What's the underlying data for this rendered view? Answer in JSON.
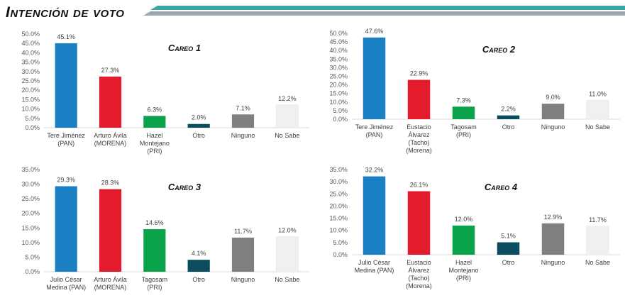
{
  "page": {
    "title": "Intención de voto"
  },
  "colors": {
    "header_teal": "#3aa6a6",
    "header_gray": "#9ea6ad",
    "pan_blue": "#1b7fc3",
    "morena_red": "#e41b2c",
    "pri_green": "#0aa24a",
    "otro_dark_teal": "#0b4d5e",
    "ninguno_gray": "#7f7f7f",
    "nosabe_light": "#f0f0f0",
    "axis_text": "#595959",
    "label_text": "#404040"
  },
  "chart_data": [
    {
      "type": "bar",
      "title": "Careo 1",
      "categories": [
        "Tere Jiménez|(PAN)",
        "Arturo Ávila|(MORENA)",
        "Hazel|Montejano|(PRI)",
        "Otro",
        "Ninguno",
        "No Sabe"
      ],
      "values": [
        45.1,
        27.3,
        6.3,
        2.0,
        7.1,
        12.2
      ],
      "value_labels": [
        "45.1%",
        "27.3%",
        "6.3%",
        "2.0%",
        "7.1%",
        "12.2%"
      ],
      "bar_colors": [
        "#1b7fc3",
        "#e41b2c",
        "#0aa24a",
        "#0b4d5e",
        "#7f7f7f",
        "#f0f0f0"
      ],
      "ylim": [
        0,
        50
      ],
      "yticks": [
        "0.0%",
        "5.0%",
        "10.0%",
        "15.0%",
        "20.0%",
        "25.0%",
        "30.0%",
        "35.0%",
        "40.0%",
        "45.0%",
        "50.0%"
      ],
      "grid": false,
      "xlabel": "",
      "ylabel": ""
    },
    {
      "type": "bar",
      "title": "Careo 2",
      "categories": [
        "Tere Jiménez|(PAN)",
        "Eustacio|Álvarez|(Tacho)|(Morena)",
        "Tagosam|(PRI)",
        "Otro",
        "Ninguno",
        "No Sabe"
      ],
      "values": [
        47.6,
        22.9,
        7.3,
        2.2,
        9.0,
        11.0
      ],
      "value_labels": [
        "47.6%",
        "22.9%",
        "7.3%",
        "2.2%",
        "9.0%",
        "11.0%"
      ],
      "bar_colors": [
        "#1b7fc3",
        "#e41b2c",
        "#0aa24a",
        "#0b4d5e",
        "#7f7f7f",
        "#f0f0f0"
      ],
      "ylim": [
        0,
        50
      ],
      "yticks": [
        "0.0%",
        "5.0%",
        "10.0%",
        "15.0%",
        "20.0%",
        "25.0%",
        "30.0%",
        "35.0%",
        "40.0%",
        "45.0%",
        "50.0%"
      ],
      "grid": false,
      "xlabel": "",
      "ylabel": ""
    },
    {
      "type": "bar",
      "title": "Careo 3",
      "categories": [
        "Julio César|Medina (PAN)",
        "Arturo Ávila|(MORENA)",
        "Tagosam|(PRI)",
        "Otro",
        "Ninguno",
        "No Sabe"
      ],
      "values": [
        29.3,
        28.3,
        14.6,
        4.1,
        11.7,
        12.0
      ],
      "value_labels": [
        "29.3%",
        "28.3%",
        "14.6%",
        "4.1%",
        "11.7%",
        "12.0%"
      ],
      "bar_colors": [
        "#1b7fc3",
        "#e41b2c",
        "#0aa24a",
        "#0b4d5e",
        "#7f7f7f",
        "#f0f0f0"
      ],
      "ylim": [
        0,
        35
      ],
      "yticks": [
        "0.0%",
        "5.0%",
        "10.0%",
        "15.0%",
        "20.0%",
        "25.0%",
        "30.0%",
        "35.0%"
      ],
      "grid": false,
      "xlabel": "",
      "ylabel": ""
    },
    {
      "type": "bar",
      "title": "Careo 4",
      "categories": [
        "Julio César|Medina (PAN)",
        "Eustacio|Álvarez|(Tacho)|(Morena)",
        "Hazel|Montejano|(PRI)",
        "Otro",
        "Ninguno",
        "No Sabe"
      ],
      "values": [
        32.2,
        26.1,
        12.0,
        5.1,
        12.9,
        11.7
      ],
      "value_labels": [
        "32.2%",
        "26.1%",
        "12.0%",
        "5.1%",
        "12.9%",
        "11.7%"
      ],
      "bar_colors": [
        "#1b7fc3",
        "#e41b2c",
        "#0aa24a",
        "#0b4d5e",
        "#7f7f7f",
        "#f0f0f0"
      ],
      "ylim": [
        0,
        35
      ],
      "yticks": [
        "0.0%",
        "5.0%",
        "10.0%",
        "15.0%",
        "20.0%",
        "25.0%",
        "30.0%",
        "35.0%"
      ],
      "grid": false,
      "xlabel": "",
      "ylabel": ""
    }
  ]
}
